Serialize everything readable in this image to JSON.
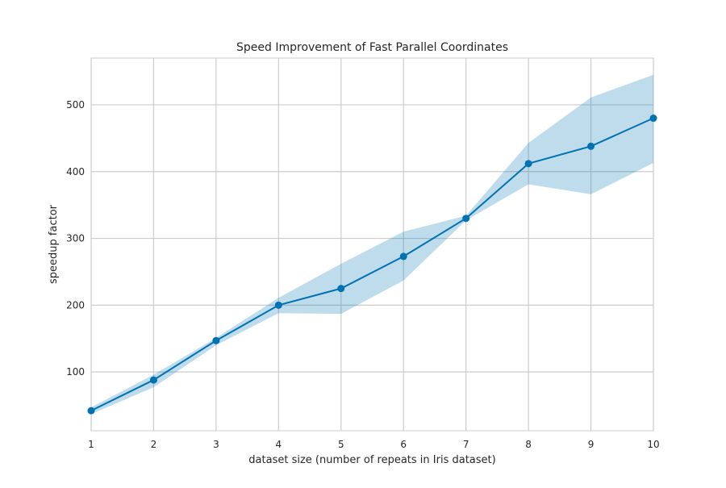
{
  "chart_data": {
    "type": "line",
    "title": "Speed Improvement of Fast Parallel Coordinates",
    "xlabel": "dataset size (number of repeats in Iris dataset)",
    "ylabel": "speedup factor",
    "xlim": [
      1,
      10
    ],
    "ylim": [
      12,
      570
    ],
    "xticks": [
      "1",
      "2",
      "3",
      "4",
      "5",
      "6",
      "7",
      "8",
      "9",
      "10"
    ],
    "yticks": [
      "100",
      "200",
      "300",
      "400",
      "500"
    ],
    "grid": true,
    "x": [
      1,
      2,
      3,
      4,
      5,
      6,
      7,
      8,
      9,
      10
    ],
    "series": [
      {
        "values": [
          42,
          88,
          147,
          200,
          225,
          273,
          330,
          412,
          438,
          480
        ],
        "lower": [
          37,
          77,
          140,
          188,
          187,
          237,
          327,
          381,
          366,
          413
        ],
        "upper": [
          47,
          96,
          151,
          211,
          262,
          310,
          334,
          443,
          511,
          545
        ],
        "color": "#0072b2",
        "band_color": "#0072b2"
      }
    ]
  }
}
